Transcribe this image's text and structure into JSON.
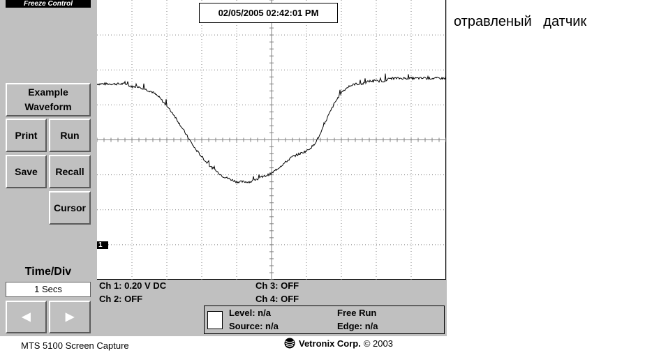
{
  "header": {
    "freeze_label": "Freeze Control"
  },
  "buttons": {
    "example_waveform": "Example Waveform",
    "print": "Print",
    "run": "Run",
    "save": "Save",
    "recall": "Recall",
    "cursor": "Cursor"
  },
  "timebase": {
    "label": "Time/Div",
    "value": "1 Secs",
    "prev_icon": "triangle-left-icon",
    "next_icon": "triangle-right-icon"
  },
  "scope": {
    "timestamp": "02/05/2005 02:42:01 PM",
    "channel_marker": "1",
    "trace_color": "#000000",
    "trace_samples": [
      0.7,
      0.7,
      0.7,
      0.7,
      0.7,
      0.69,
      0.69,
      0.68,
      0.67,
      0.65,
      0.62,
      0.59,
      0.55,
      0.51,
      0.47,
      0.44,
      0.41,
      0.39,
      0.37,
      0.36,
      0.35,
      0.35,
      0.35,
      0.36,
      0.37,
      0.38,
      0.4,
      0.42,
      0.44,
      0.45,
      0.46,
      0.48,
      0.52,
      0.58,
      0.63,
      0.67,
      0.69,
      0.7,
      0.7,
      0.71,
      0.71,
      0.71,
      0.72,
      0.72,
      0.72,
      0.72,
      0.72,
      0.72,
      0.72,
      0.72,
      0.72
    ]
  },
  "status": {
    "ch1": "Ch 1: 0.20 V DC",
    "ch2": "Ch 2: OFF",
    "ch3": "Ch 3: OFF",
    "ch4": "Ch 4: OFF",
    "level": "Level: n/a",
    "source": "Source: n/a",
    "mode": "Free Run",
    "edge": "Edge: n/a"
  },
  "footer": {
    "caption": "MTS 5100 Screen Capture",
    "brand": "Vetronix Corp.",
    "copyright": "© 2003",
    "brand_icon": "vetronix-logo-icon"
  },
  "annotation": "отравленый   датчик"
}
